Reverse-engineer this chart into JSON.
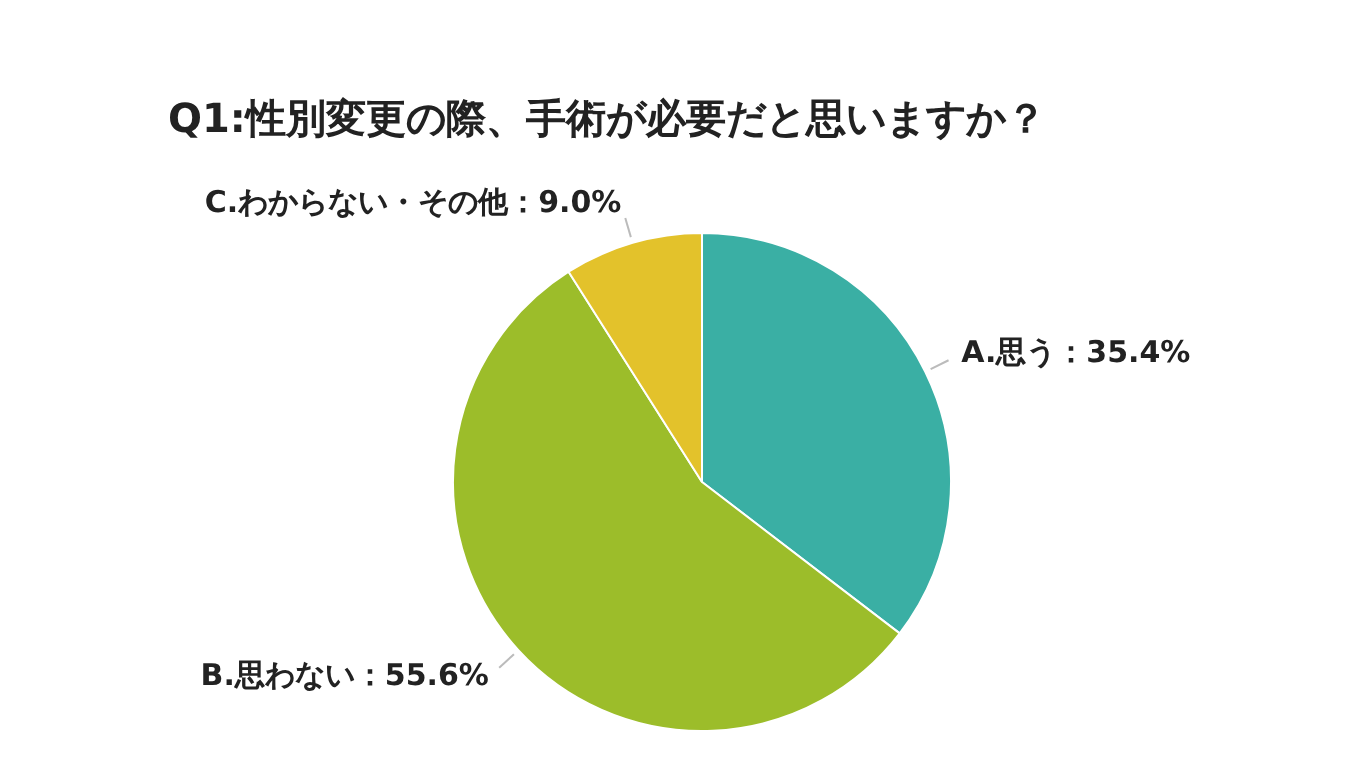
{
  "chart_data": {
    "type": "pie",
    "title": "Q1:性別変更の際、手術が必要だと思いますか？",
    "categories": [
      "A.思う",
      "B.思わない",
      "C.わからない・その他"
    ],
    "values": [
      35.4,
      55.6,
      9.0
    ],
    "value_labels": [
      "：35.4%",
      "：55.6%",
      "：9.0%"
    ],
    "colors": [
      "#3aafa4",
      "#9cbd2a",
      "#e3c22b"
    ],
    "legend": false
  }
}
